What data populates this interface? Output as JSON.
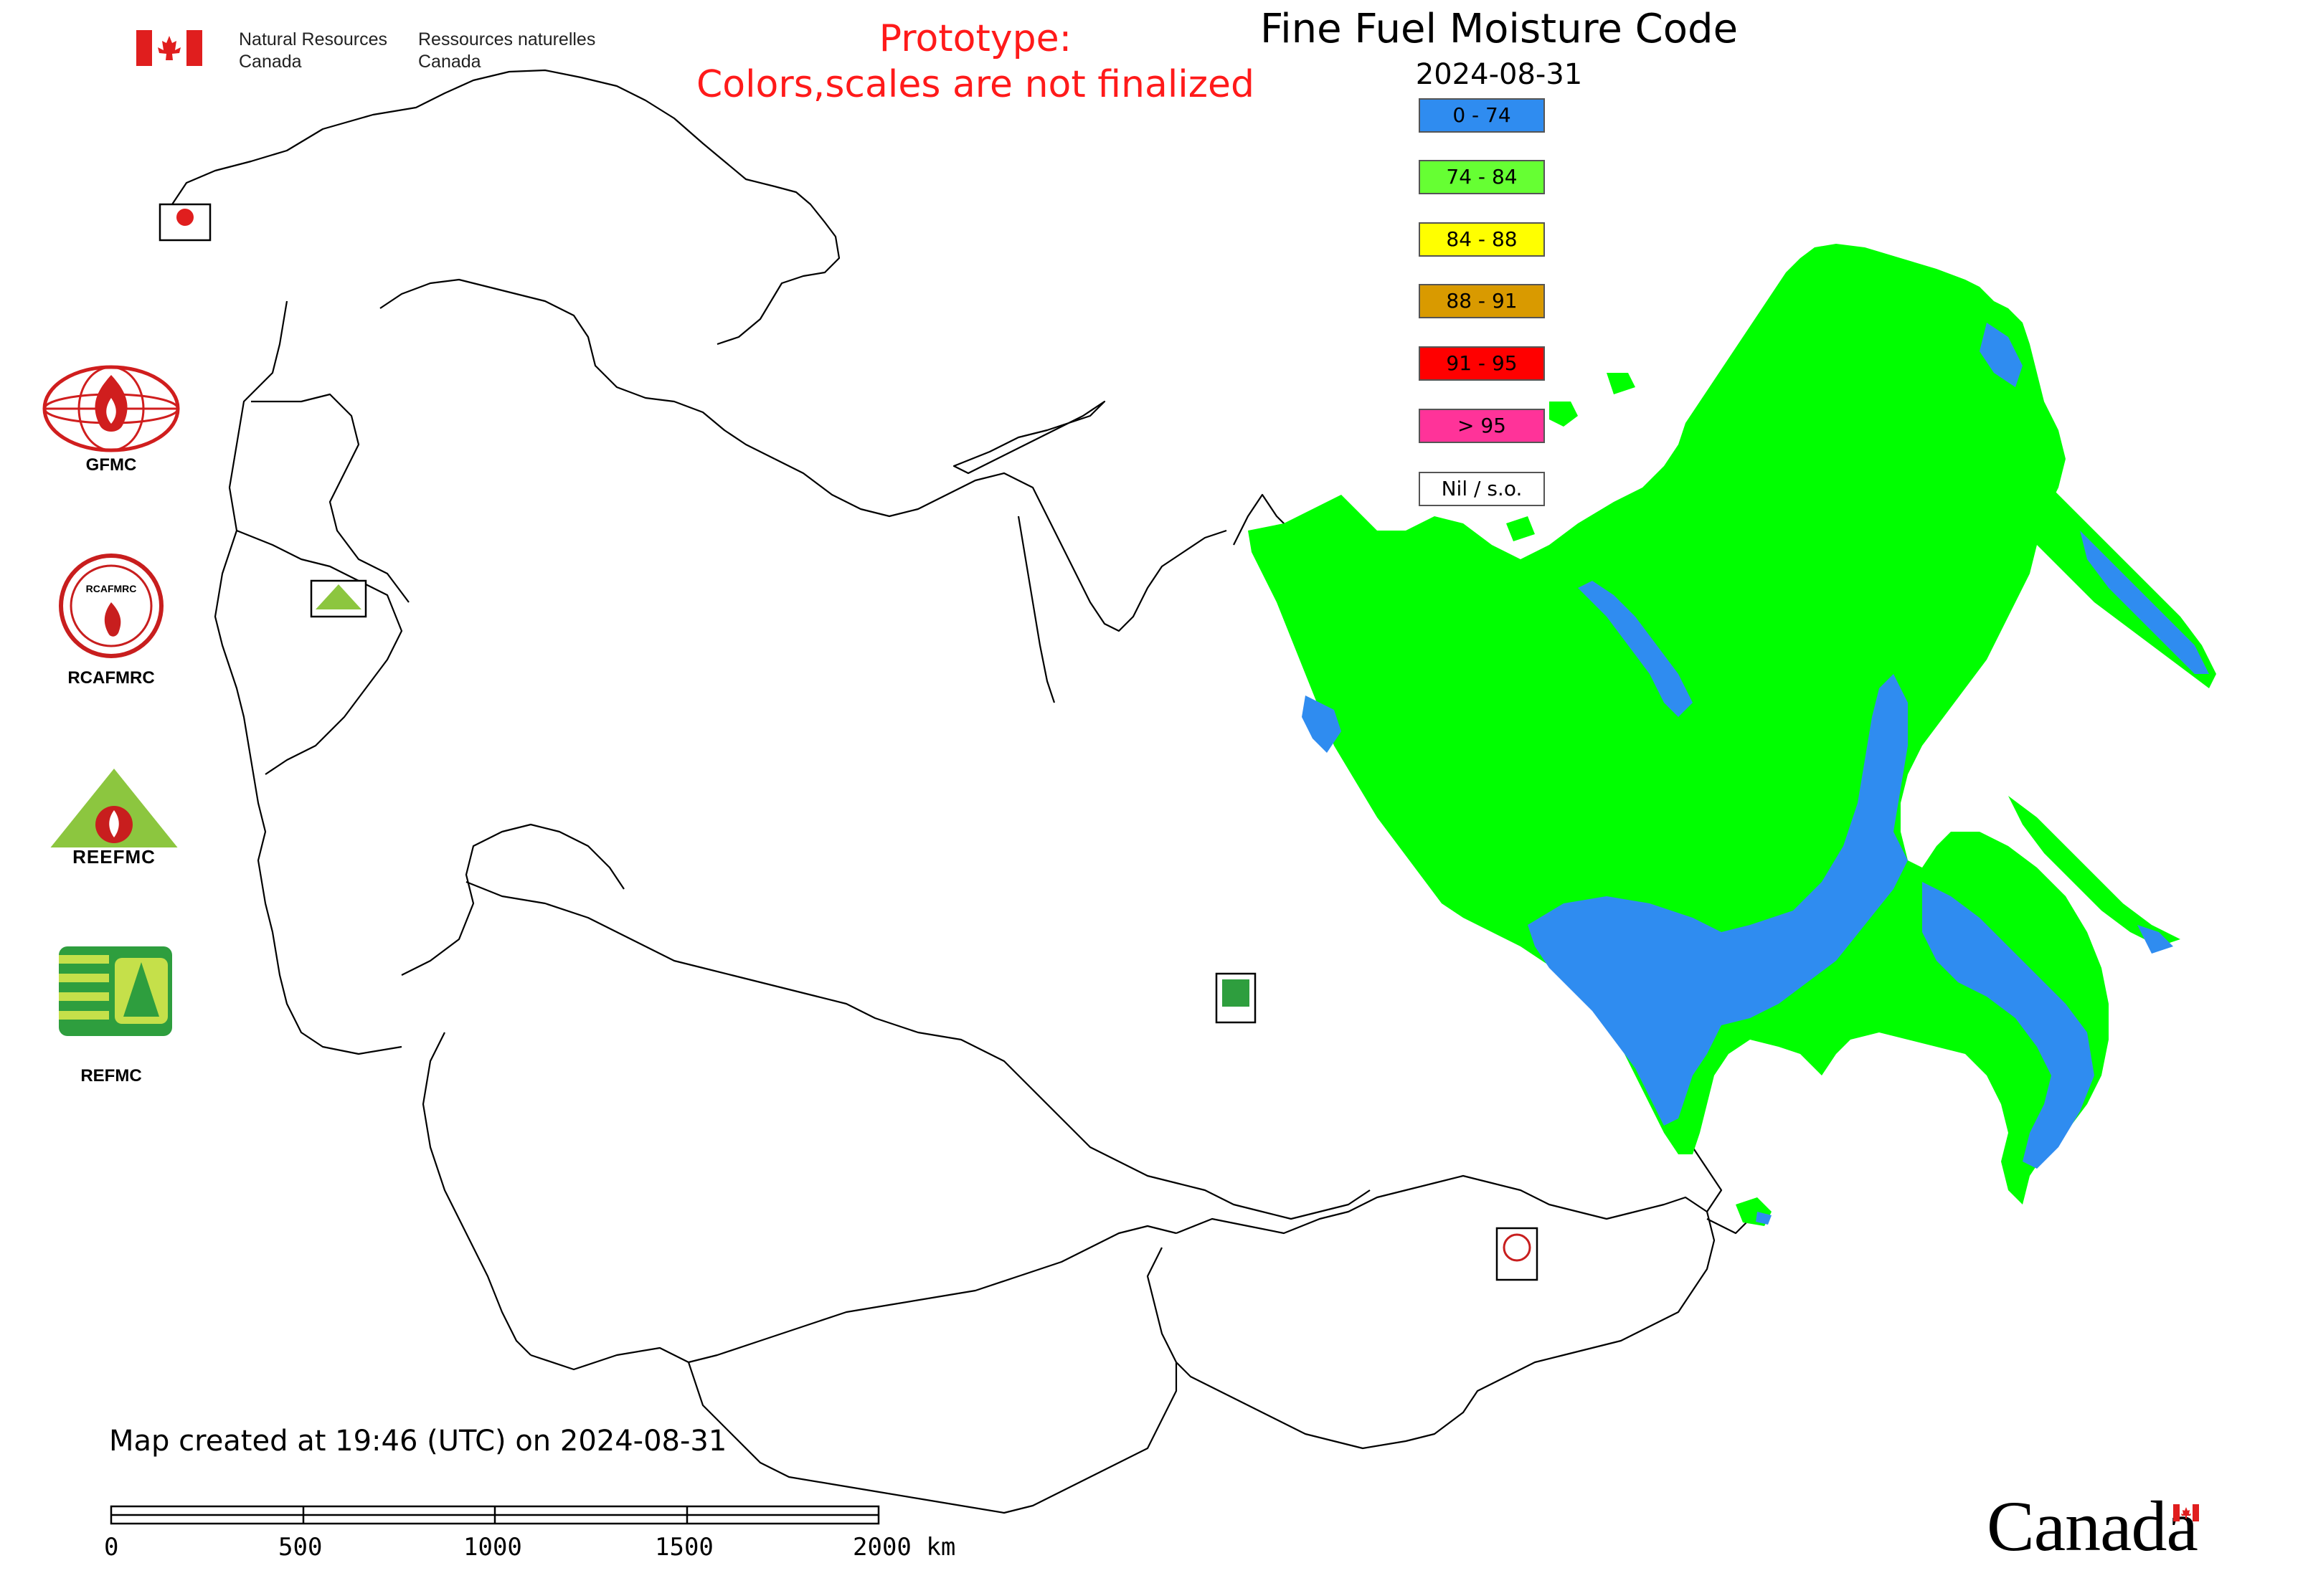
{
  "header": {
    "nrcan_en_line1": "Natural Resources",
    "nrcan_en_line2": "Canada",
    "nrcan_fr_line1": "Ressources naturelles",
    "nrcan_fr_line2": "Canada",
    "prototype_line1": "Prototype:",
    "prototype_line2": "Colors,scales are not finalized"
  },
  "map": {
    "title": "Fine Fuel Moisture Code",
    "date": "2024-08-31"
  },
  "legend": {
    "items": [
      {
        "label": "0 - 74",
        "color": "#2f8cf0"
      },
      {
        "label": "74 - 84",
        "color": "#66ff33"
      },
      {
        "label": "84 - 88",
        "color": "#ffff00"
      },
      {
        "label": "88 - 91",
        "color": "#d99a00"
      },
      {
        "label": "91 - 95",
        "color": "#ff0000"
      },
      {
        "label": "> 95",
        "color": "#ff3399"
      },
      {
        "label": "Nil / s.o.",
        "color": "#ffffff"
      }
    ]
  },
  "logos": {
    "gfmc_label": "GFMC",
    "rcafmrc_label": "RCAFMRC",
    "reefmc_label": "REEFMC",
    "refmc_label": "REFMC"
  },
  "footer": {
    "created": "Map created at 19:46 (UTC) on 2024-08-31",
    "scale_labels": [
      "0",
      "500",
      "1000",
      "1500",
      "2000 km"
    ],
    "wordmark": "Canada"
  }
}
